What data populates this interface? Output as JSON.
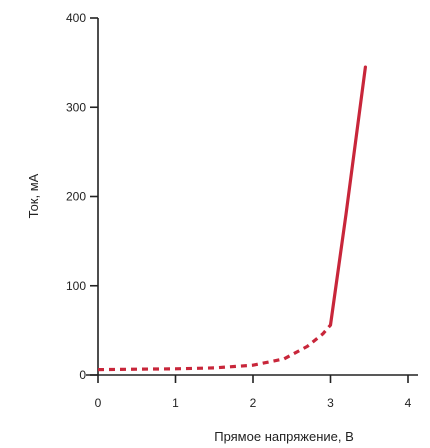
{
  "chart_data": {
    "type": "line",
    "title": "",
    "xlabel": "Прямое напряжение, В",
    "ylabel": "Ток, мА",
    "xlim": [
      0,
      4
    ],
    "ylim": [
      0,
      400
    ],
    "x_ticks": [
      0,
      1,
      2,
      3,
      4
    ],
    "y_ticks": [
      0,
      100,
      200,
      300,
      400
    ],
    "grid": false,
    "series": [
      {
        "style": "dashed",
        "color": "#c8263a",
        "points": [
          {
            "x": 0.0,
            "y": 6
          },
          {
            "x": 0.5,
            "y": 6.5
          },
          {
            "x": 1.0,
            "y": 7
          },
          {
            "x": 1.5,
            "y": 8
          },
          {
            "x": 2.0,
            "y": 11
          },
          {
            "x": 2.4,
            "y": 18
          },
          {
            "x": 2.7,
            "y": 32
          },
          {
            "x": 2.9,
            "y": 46
          },
          {
            "x": 3.0,
            "y": 56
          }
        ]
      },
      {
        "style": "solid",
        "color": "#c8263a",
        "points": [
          {
            "x": 3.0,
            "y": 56
          },
          {
            "x": 3.2,
            "y": 180
          },
          {
            "x": 3.45,
            "y": 345
          }
        ]
      }
    ]
  }
}
